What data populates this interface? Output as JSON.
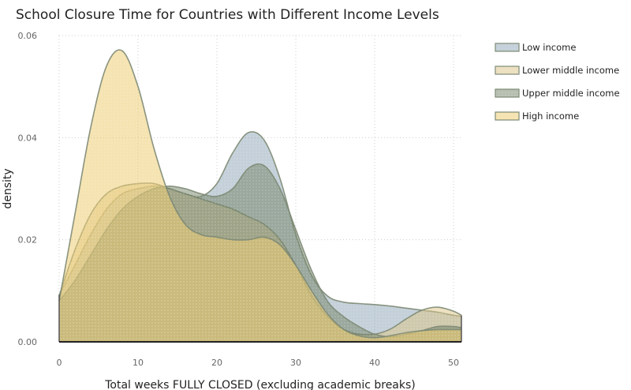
{
  "chart_data": {
    "type": "area",
    "title": "School Closure Time for Countries with Different Income Levels",
    "xlabel": "Total weeks FULLY CLOSED (excluding academic breaks)",
    "ylabel": "density",
    "xlim": [
      0,
      51
    ],
    "ylim": [
      0,
      0.06
    ],
    "x_ticks": [
      0,
      10,
      20,
      30,
      40,
      50
    ],
    "y_ticks": [
      {
        "value": 0,
        "label": "0.00"
      },
      {
        "value": 0.02,
        "label": "0.02"
      },
      {
        "value": 0.04,
        "label": "0.04"
      },
      {
        "value": 0.06,
        "label": "0.06"
      }
    ],
    "grid": true,
    "legend_position": "top-right",
    "x": [
      0,
      2,
      4,
      6,
      8,
      10,
      12,
      14,
      16,
      18,
      20,
      22,
      24,
      26,
      28,
      30,
      32,
      34,
      36,
      38,
      40,
      42,
      44,
      46,
      48,
      50,
      51
    ],
    "series": [
      {
        "name": "Low income",
        "color": "#8aa1b4",
        "fill_opacity": 0.5,
        "values": [
          0.0092,
          0.015,
          0.021,
          0.026,
          0.029,
          0.03,
          0.0305,
          0.03,
          0.029,
          0.0285,
          0.031,
          0.037,
          0.041,
          0.0395,
          0.032,
          0.021,
          0.013,
          0.009,
          0.0078,
          0.0075,
          0.0073,
          0.007,
          0.0066,
          0.0062,
          0.0058,
          0.0052,
          0.005
        ]
      },
      {
        "name": "Lower middle income",
        "color": "#d9c282",
        "fill_opacity": 0.5,
        "values": [
          0.009,
          0.018,
          0.025,
          0.029,
          0.0305,
          0.031,
          0.031,
          0.03,
          0.029,
          0.028,
          0.027,
          0.026,
          0.0245,
          0.023,
          0.02,
          0.015,
          0.009,
          0.005,
          0.0025,
          0.0015,
          0.0015,
          0.0025,
          0.0045,
          0.0062,
          0.0068,
          0.006,
          0.0052
        ]
      },
      {
        "name": "Upper middle income",
        "color": "#707f64",
        "fill_opacity": 0.5,
        "values": [
          0.008,
          0.012,
          0.017,
          0.022,
          0.026,
          0.0285,
          0.03,
          0.0305,
          0.03,
          0.029,
          0.0285,
          0.03,
          0.034,
          0.0345,
          0.03,
          0.022,
          0.014,
          0.008,
          0.005,
          0.003,
          0.0015,
          0.001,
          0.0015,
          0.0022,
          0.003,
          0.003,
          0.0028
        ]
      },
      {
        "name": "High income",
        "color": "#eccc71",
        "fill_opacity": 0.55,
        "values": [
          0.008,
          0.025,
          0.042,
          0.054,
          0.057,
          0.05,
          0.038,
          0.0285,
          0.023,
          0.021,
          0.0205,
          0.02,
          0.02,
          0.0205,
          0.019,
          0.015,
          0.01,
          0.0055,
          0.0025,
          0.0012,
          0.0008,
          0.0012,
          0.0018,
          0.0022,
          0.0024,
          0.0024,
          0.0024
        ]
      }
    ]
  }
}
